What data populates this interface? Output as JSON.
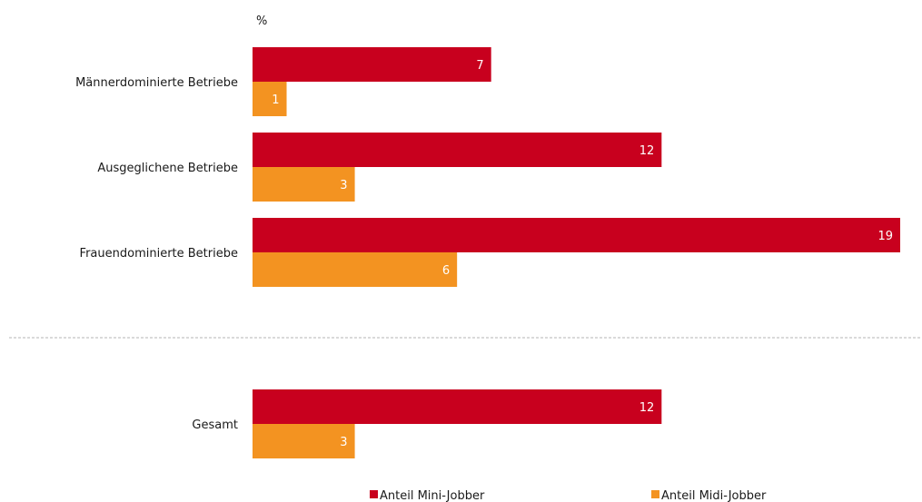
{
  "chart_data": {
    "type": "bar",
    "orientation": "horizontal",
    "unit": "%",
    "categories": [
      "Männerdominierte Betriebe",
      "Ausgeglichene Betriebe",
      "Frauendominierte Betriebe",
      "Gesamt"
    ],
    "series": [
      {
        "name": "Anteil Mini-Jobber",
        "values": [
          7,
          12,
          19,
          12
        ],
        "color": "#c8001e"
      },
      {
        "name": "Anteil Midi-Jobber",
        "values": [
          1,
          3,
          6,
          3
        ],
        "color": "#f39321"
      }
    ],
    "xlim": [
      0,
      19
    ],
    "grid": false,
    "separator_before_category": "Gesamt",
    "legend_position": "bottom"
  }
}
